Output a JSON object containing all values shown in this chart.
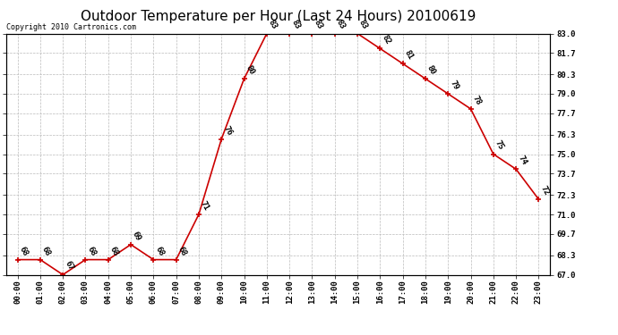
{
  "title": "Outdoor Temperature per Hour (Last 24 Hours) 20100619",
  "copyright": "Copyright 2010 Cartronics.com",
  "hours": [
    "00:00",
    "01:00",
    "02:00",
    "03:00",
    "04:00",
    "05:00",
    "06:00",
    "07:00",
    "08:00",
    "09:00",
    "10:00",
    "11:00",
    "12:00",
    "13:00",
    "14:00",
    "15:00",
    "16:00",
    "17:00",
    "18:00",
    "19:00",
    "20:00",
    "21:00",
    "22:00",
    "23:00"
  ],
  "values": [
    68,
    68,
    67,
    68,
    68,
    69,
    68,
    68,
    71,
    76,
    80,
    83,
    83,
    83,
    83,
    83,
    82,
    81,
    80,
    79,
    78,
    75,
    74,
    72
  ],
  "line_color": "#cc0000",
  "marker_color": "#cc0000",
  "bg_color": "#ffffff",
  "grid_color": "#bbbbbb",
  "ylim": [
    67.0,
    83.0
  ],
  "yticks": [
    67.0,
    68.3,
    69.7,
    71.0,
    72.3,
    73.7,
    75.0,
    76.3,
    77.7,
    79.0,
    80.3,
    81.7,
    83.0
  ],
  "title_fontsize": 11,
  "label_fontsize": 6.5,
  "tick_fontsize": 6.5,
  "copyright_fontsize": 6
}
